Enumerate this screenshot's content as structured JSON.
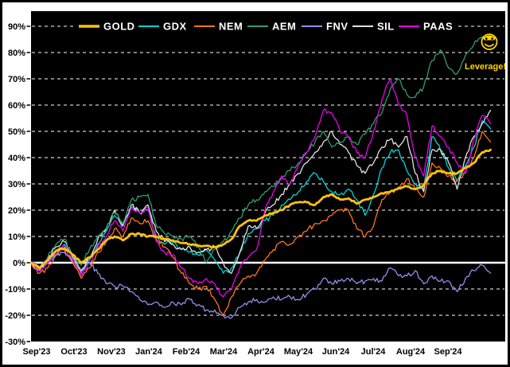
{
  "window": {
    "background_color": "#FFFFFF",
    "frame_border_color": "#000000",
    "plot_background_color": "#000000",
    "gridline_color": "#FFFFFF",
    "axis_label_color": "#000000"
  },
  "chart_data": {
    "type": "line",
    "title": "",
    "xlabel": "",
    "ylabel": "",
    "x_labels": [
      "Sep'23",
      "Oct'23",
      "Nov'23",
      "Jan'24",
      "Feb'24",
      "Mar'24",
      "Apr'24",
      "May'24",
      "Jun'24",
      "Jul'24",
      "Aug'24",
      "Sep'24"
    ],
    "y_ticks": [
      90,
      80,
      70,
      60,
      50,
      40,
      30,
      20,
      10,
      0,
      -10,
      -20,
      -30
    ],
    "y_tick_suffix": "%",
    "ylim": [
      -30,
      96
    ],
    "zero_line_value": 0,
    "grid": "dashed horizontal white on black, solid white zero line",
    "legend_position": "top-inside",
    "series": [
      {
        "name": "GOLD",
        "color": "#FFC20E",
        "emphasis": "thick",
        "values": [
          0,
          -2,
          1,
          4.5,
          5.5,
          3,
          0,
          2,
          5,
          8.5,
          10,
          8.5,
          11,
          11,
          10,
          10,
          9,
          8.5,
          7.5,
          7,
          6.5,
          6.5,
          6,
          7,
          9,
          14,
          16,
          16,
          18,
          19,
          20,
          22,
          23,
          23,
          22,
          25,
          26,
          24,
          24.5,
          22.5,
          24,
          25,
          26.5,
          27,
          28.5,
          29,
          28,
          29.5,
          34,
          35,
          34,
          34,
          36,
          38,
          42,
          43
        ]
      },
      {
        "name": "GDX",
        "color": "#00D5D5",
        "emphasis": "normal",
        "values": [
          0,
          -3,
          0,
          5,
          7,
          2,
          -4,
          1,
          7,
          12,
          18,
          14,
          21,
          19,
          20,
          10,
          7,
          8,
          5,
          4,
          3,
          5,
          1,
          -4,
          -2,
          4,
          11,
          13,
          16,
          18,
          22,
          24,
          27,
          31,
          34,
          31,
          27,
          26,
          28,
          24,
          18,
          26,
          36,
          42,
          43,
          35,
          30,
          28,
          48,
          43,
          36,
          31,
          37,
          44,
          54,
          51
        ]
      },
      {
        "name": "NEM",
        "color": "#FF7519",
        "emphasis": "normal",
        "values": [
          0,
          -4,
          -2,
          3,
          5,
          0,
          -6,
          -2,
          4,
          8,
          13,
          10,
          17,
          15,
          16,
          9,
          6,
          2,
          -4,
          -8,
          -10,
          -9,
          -14,
          -20,
          -13,
          -8,
          -5,
          -4,
          1,
          5,
          8,
          7,
          10,
          12,
          15,
          16,
          18,
          20,
          20,
          13,
          10,
          14,
          24,
          27,
          28,
          32,
          28,
          25,
          38,
          36,
          33,
          31,
          34,
          40,
          50,
          46
        ]
      },
      {
        "name": "AEM",
        "color": "#2E9E6E",
        "emphasis": "normal",
        "values": [
          0,
          -2,
          2,
          7,
          9,
          3,
          -1,
          5,
          10,
          13,
          19,
          15,
          24,
          25,
          26,
          14,
          11,
          10,
          9,
          10,
          6,
          0,
          5,
          8,
          12,
          17,
          22,
          24,
          27,
          29,
          32,
          35,
          38,
          42,
          46,
          50,
          44,
          46,
          48,
          45,
          49,
          53,
          57,
          66,
          70,
          64,
          63,
          67,
          77,
          81,
          74,
          72,
          79,
          83,
          86,
          81
        ]
      },
      {
        "name": "FNV",
        "color": "#9090EC",
        "emphasis": "normal",
        "values": [
          0,
          -2,
          0,
          3,
          4,
          1,
          -3,
          0,
          -4,
          -8,
          -9,
          -9,
          -11,
          -14,
          -16,
          -15,
          -17,
          -15,
          -16,
          -14,
          -16,
          -18,
          -18,
          -20,
          -21,
          -17,
          -15,
          -14,
          -15,
          -13,
          -14,
          -13,
          -14,
          -12,
          -10,
          -6,
          -8,
          -7,
          -6,
          -8,
          -7,
          -6,
          -7,
          -2,
          -5,
          -5,
          -3,
          -8,
          -5,
          -7,
          -7,
          -11,
          -6,
          -3,
          -1,
          -4
        ]
      },
      {
        "name": "SIL",
        "color": "#E2E2E2",
        "emphasis": "normal",
        "values": [
          0,
          -3,
          1,
          6,
          8,
          2,
          -3,
          2,
          9,
          13,
          20,
          14,
          22,
          19,
          22,
          12,
          8,
          7,
          5,
          6,
          4,
          5,
          6,
          0,
          -4,
          4,
          14,
          13,
          19,
          22,
          26,
          30,
          34,
          38,
          42,
          46,
          50,
          45,
          42,
          37,
          34,
          38,
          44,
          47,
          44,
          48,
          34,
          27,
          43,
          43,
          38,
          28,
          40,
          48,
          53,
          58
        ]
      },
      {
        "name": "PAAS",
        "color": "#EE00EE",
        "emphasis": "normal",
        "values": [
          0,
          -3,
          0,
          4,
          6,
          1,
          -5,
          0,
          6,
          10,
          16,
          12,
          21,
          19,
          21,
          8,
          4,
          3,
          -2,
          -6,
          -8,
          -6,
          -8,
          -13,
          -10,
          -2,
          2,
          5,
          20,
          27,
          33,
          30,
          37,
          42,
          48,
          58,
          57,
          50,
          48,
          42,
          40,
          50,
          62,
          70,
          60,
          56,
          40,
          33,
          52,
          48,
          44,
          38,
          34,
          47,
          56,
          53
        ]
      }
    ],
    "annotations": {
      "leverage_label": "Leverage!",
      "annotation_color": "#FFD400",
      "smiley_icon_color": "#FFD400"
    }
  }
}
